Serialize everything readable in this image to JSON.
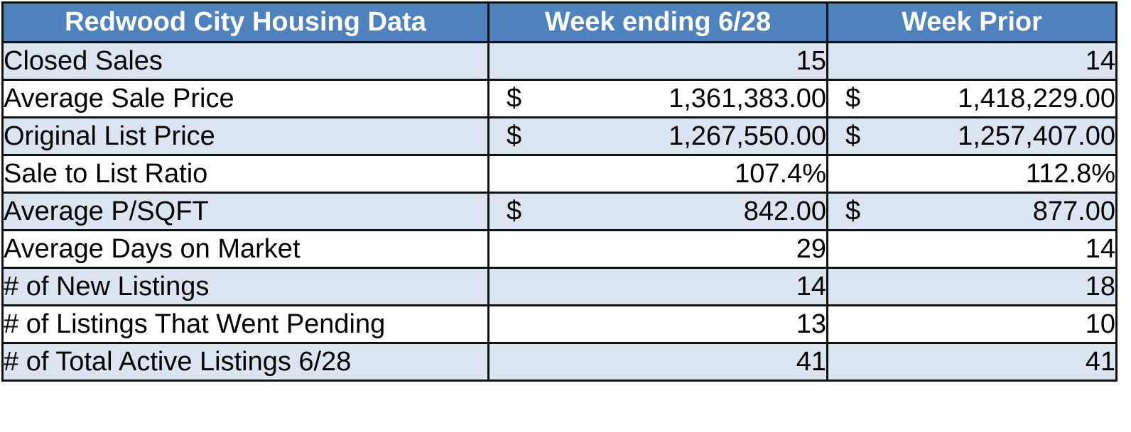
{
  "table": {
    "headers": [
      "Redwood City Housing Data",
      "Week ending 6/28",
      "Week Prior"
    ],
    "rows": [
      {
        "label": "Closed Sales",
        "currency": "",
        "current": "15",
        "prior": "14"
      },
      {
        "label": "Average Sale Price",
        "currency": "$",
        "current": "1,361,383.00",
        "prior": "1,418,229.00"
      },
      {
        "label": "Original List Price",
        "currency": "$",
        "current": "1,267,550.00",
        "prior": "1,257,407.00"
      },
      {
        "label": "Sale to List Ratio",
        "currency": "",
        "current": "107.4%",
        "prior": "112.8%"
      },
      {
        "label": "Average P/SQFT",
        "currency": "$",
        "current": "842.00",
        "prior": "877.00"
      },
      {
        "label": "Average Days on Market",
        "currency": "",
        "current": "29",
        "prior": "14"
      },
      {
        "label": "# of New Listings",
        "currency": "",
        "current": "14",
        "prior": "18"
      },
      {
        "label": "# of Listings That Went Pending",
        "currency": "",
        "current": "13",
        "prior": "10"
      },
      {
        "label": "# of Total Active Listings 6/28",
        "currency": "",
        "current": "41",
        "prior": "41"
      }
    ]
  },
  "colors": {
    "header_bg": "#4f81bd",
    "header_text": "#ffffff",
    "shaded_row_bg": "#dbe5f1",
    "plain_row_bg": "#ffffff",
    "border": "#111111"
  }
}
